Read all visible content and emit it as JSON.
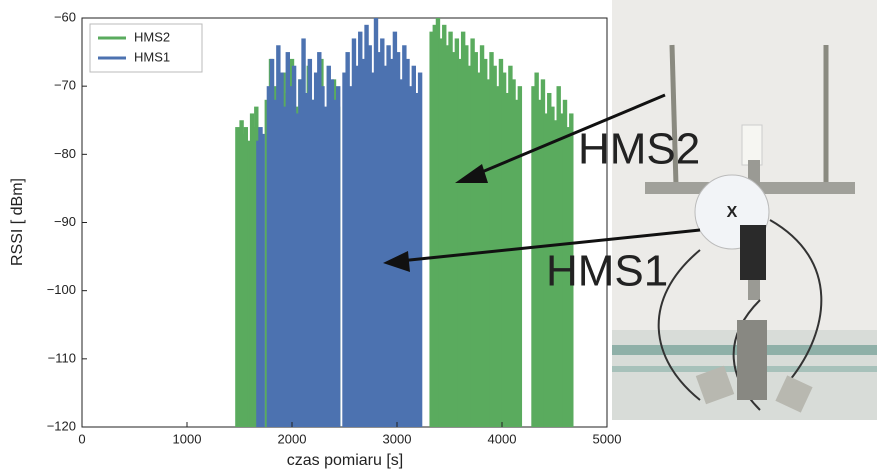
{
  "chart_data": {
    "type": "bar",
    "xlabel": "czas pomiaru [s]",
    "ylabel": "RSSI [ dBm]",
    "xlim": [
      0,
      5000
    ],
    "ylim": [
      -120,
      -60
    ],
    "xticks": [
      0,
      1000,
      2000,
      3000,
      4000,
      5000
    ],
    "yticks": [
      {
        "value": -60,
        "label": "−60"
      },
      {
        "value": -70,
        "label": "−70"
      },
      {
        "value": -80,
        "label": "−80"
      },
      {
        "value": -90,
        "label": "−90"
      },
      {
        "value": -100,
        "label": "−100"
      },
      {
        "value": -110,
        "label": "−110"
      },
      {
        "value": -120,
        "label": "−120"
      }
    ],
    "legend": "upper left",
    "annotations": [
      "HMS2",
      "HMS1"
    ],
    "series": [
      {
        "name": "HMS2",
        "color": "#5aab5e",
        "x": [
          1480,
          1500,
          1520,
          1540,
          1560,
          1580,
          1600,
          1620,
          1640,
          1660,
          1760,
          1800,
          1840,
          1880,
          1920,
          1960,
          2000,
          2040,
          2080,
          2120,
          2160,
          2200,
          2240,
          2280,
          2320,
          2360,
          2400,
          2440,
          3330,
          3360,
          3390,
          3420,
          3450,
          3480,
          3510,
          3540,
          3570,
          3600,
          3630,
          3660,
          3690,
          3720,
          3750,
          3780,
          3810,
          3840,
          3870,
          3900,
          3930,
          3960,
          3990,
          4020,
          4050,
          4080,
          4110,
          4140,
          4170,
          4300,
          4330,
          4360,
          4390,
          4420,
          4450,
          4480,
          4510,
          4540,
          4570,
          4600,
          4630,
          4660
        ],
        "values": [
          -76,
          -78,
          -75,
          -77,
          -76,
          -80,
          -78,
          -74,
          -76,
          -73,
          -72,
          -66,
          -70,
          -75,
          -68,
          -71,
          -66,
          -73,
          -69,
          -74,
          -67,
          -72,
          -70,
          -66,
          -75,
          -71,
          -69,
          -73,
          -62,
          -61,
          -60,
          -63,
          -61,
          -64,
          -62,
          -65,
          -63,
          -66,
          -62,
          -64,
          -67,
          -63,
          -65,
          -68,
          -64,
          -66,
          -69,
          -65,
          -67,
          -70,
          -66,
          -68,
          -71,
          -67,
          -69,
          -72,
          -70,
          -70,
          -68,
          -72,
          -69,
          -74,
          -71,
          -73,
          -75,
          -70,
          -74,
          -72,
          -76,
          -74
        ]
      },
      {
        "name": "HMS1",
        "color": "#4c72b0",
        "x": [
          1680,
          1700,
          1720,
          1780,
          1810,
          1840,
          1870,
          1900,
          1930,
          1960,
          1990,
          2020,
          2050,
          2080,
          2110,
          2140,
          2170,
          2200,
          2230,
          2260,
          2290,
          2320,
          2350,
          2380,
          2410,
          2440,
          2500,
          2530,
          2560,
          2590,
          2620,
          2650,
          2680,
          2710,
          2740,
          2770,
          2800,
          2830,
          2860,
          2890,
          2920,
          2950,
          2980,
          3010,
          3040,
          3070,
          3100,
          3130,
          3160,
          3190,
          3220
        ],
        "values": [
          -78,
          -76,
          -77,
          -70,
          -66,
          -72,
          -64,
          -68,
          -73,
          -65,
          -70,
          -67,
          -74,
          -69,
          -63,
          -71,
          -66,
          -72,
          -68,
          -65,
          -70,
          -73,
          -67,
          -69,
          -72,
          -70,
          -68,
          -65,
          -70,
          -63,
          -67,
          -62,
          -66,
          -61,
          -64,
          -68,
          -60,
          -65,
          -63,
          -67,
          -64,
          -66,
          -62,
          -65,
          -69,
          -64,
          -66,
          -70,
          -67,
          -71,
          -68
        ]
      }
    ]
  }
}
